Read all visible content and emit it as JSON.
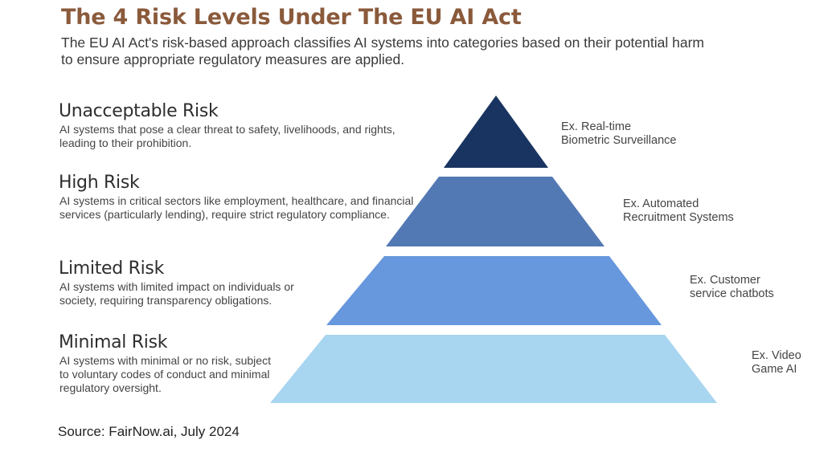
{
  "title": "The 4 Risk Levels Under The EU AI Act",
  "subtitle": "The EU AI Act's risk-based approach classifies AI systems into categories based on their potential harm to ensure appropriate regulatory measures are applied.",
  "levels": [
    {
      "name": "Unacceptable Risk",
      "description": "AI systems that pose a clear threat to safety, livelihoods, and rights, leading to their prohibition.",
      "example": "Ex. Real-time\nBiometric Surveillance",
      "color": "#1a3461"
    },
    {
      "name": "High Risk",
      "description": "AI systems in critical sectors like employment, healthcare, and financial services (particularly lending), require strict regulatory compliance.",
      "example": "Ex. Automated\nRecruitment Systems",
      "color": "#5279b4"
    },
    {
      "name": "Limited Risk",
      "description": "AI systems with limited impact on individuals or society, requiring transparency obligations.",
      "example": "Ex. Customer\nservice chatbots",
      "color": "#6797dd"
    },
    {
      "name": "Minimal Risk",
      "description": "AI systems with minimal or no risk, subject to voluntary codes of conduct and minimal regulatory oversight.",
      "example": "Ex. Video\nGame AI",
      "color": "#a8d5ef"
    }
  ],
  "source": "Source: FairNow.ai, July 2024"
}
